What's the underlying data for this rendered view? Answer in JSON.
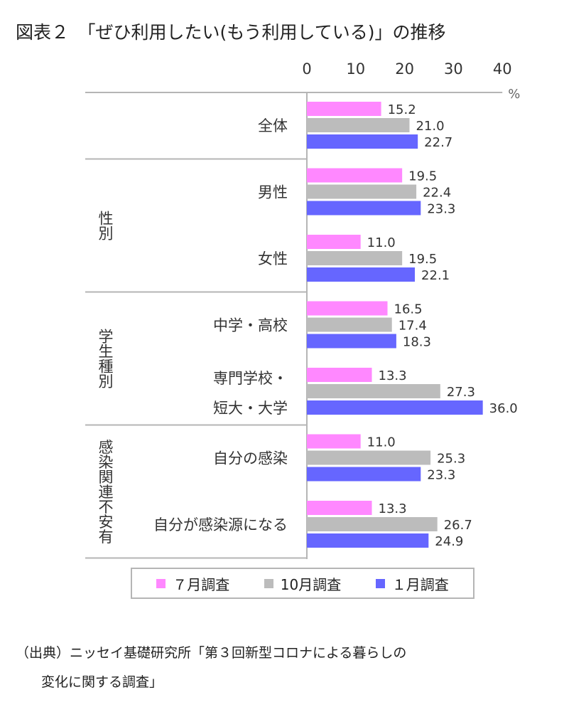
{
  "title": "図表２　「ぜひ利用したい(もう利用している)」の推移",
  "source_line1": "（出典）ニッセイ基礎研究所「第３回新型コロナによる暮らしの",
  "source_line2": "変化に関する調査」",
  "colors": {
    "jul": "#ff88ff",
    "oct": "#bcbcbc",
    "jan": "#6666ff"
  },
  "chart_data": {
    "type": "bar",
    "orientation": "horizontal",
    "unit": "%",
    "xlim": [
      0,
      40
    ],
    "xticks": [
      "0",
      "10",
      "20",
      "30",
      "40"
    ],
    "groups": [
      {
        "label": "",
        "categories": [
          "0"
        ]
      },
      {
        "label": "性別",
        "categories": [
          "1",
          "2"
        ]
      },
      {
        "label": "学生種別",
        "categories": [
          "3",
          "4"
        ]
      },
      {
        "label": "感染関連不安有",
        "categories": [
          "5",
          "6"
        ]
      }
    ],
    "categories": [
      {
        "lines": [
          "全体"
        ]
      },
      {
        "lines": [
          "男性"
        ]
      },
      {
        "lines": [
          "女性"
        ]
      },
      {
        "lines": [
          "中学・高校"
        ]
      },
      {
        "lines": [
          "専門学校・",
          "短大・大学"
        ]
      },
      {
        "lines": [
          "自分の感染"
        ]
      },
      {
        "lines": [
          "自分が感染源になる"
        ]
      }
    ],
    "series": [
      {
        "name": "７月調査",
        "color": "#ff88ff",
        "values": [
          15.2,
          19.5,
          11.0,
          16.5,
          13.3,
          11.0,
          13.3
        ]
      },
      {
        "name": "10月調査",
        "color": "#bcbcbc",
        "values": [
          21.0,
          22.4,
          19.5,
          17.4,
          27.3,
          25.3,
          26.7
        ]
      },
      {
        "name": "１月調査",
        "color": "#6666ff",
        "values": [
          22.7,
          23.3,
          22.1,
          18.3,
          36.0,
          23.3,
          24.9
        ]
      }
    ]
  }
}
